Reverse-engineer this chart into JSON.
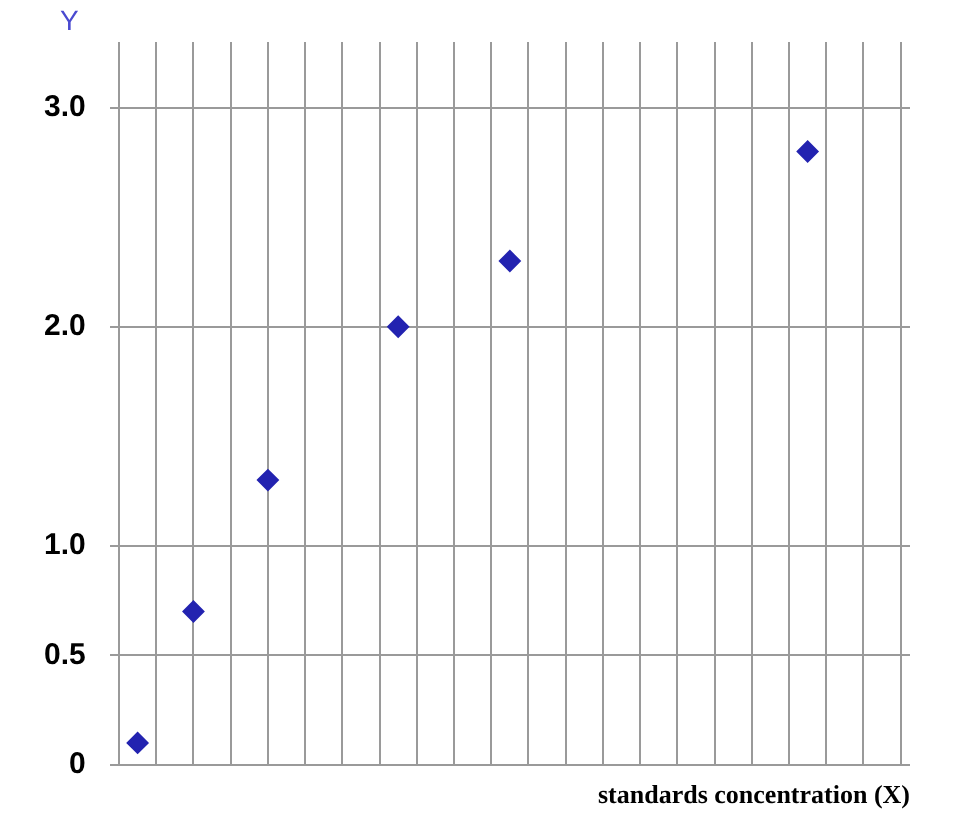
{
  "chart_data": {
    "type": "scatter",
    "xlabel": "standards concentration (X)",
    "ylabel": "Y",
    "categories": [
      null,
      null,
      null,
      null,
      null,
      null,
      null,
      null,
      null,
      null,
      null,
      null,
      null,
      null,
      null,
      null,
      null,
      null,
      null,
      null,
      null,
      null,
      null,
      null,
      null,
      null,
      null,
      null,
      null,
      null,
      null,
      null,
      null,
      null,
      null,
      null,
      null,
      null,
      null,
      null,
      null,
      null,
      null
    ],
    "values": [
      null,
      0.1,
      null,
      null,
      0.7,
      null,
      null,
      null,
      1.3,
      null,
      null,
      null,
      null,
      null,
      null,
      2.0,
      null,
      null,
      null,
      null,
      null,
      2.3,
      null,
      null,
      null,
      null,
      null,
      null,
      null,
      null,
      null,
      null,
      null,
      null,
      null,
      null,
      null,
      2.8,
      null,
      null,
      null,
      null,
      null
    ],
    "color": "#2323b0",
    "marker": "diamond",
    "grid": true,
    "ylim": [
      0,
      3.3
    ],
    "yticks": [
      0,
      0.5,
      {
        "value": 1,
        "label": "1.0"
      },
      {
        "value": 2,
        "label": "2.0"
      },
      {
        "value": 3,
        "label": "3.0"
      }
    ]
  }
}
